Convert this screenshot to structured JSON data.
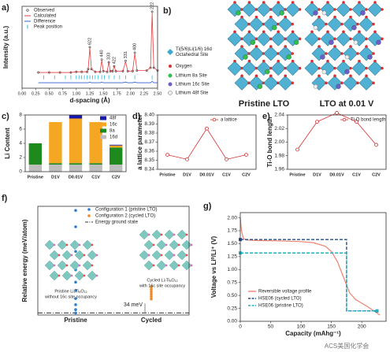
{
  "chart_data": [
    {
      "type": "xrd",
      "panel_label": "a)",
      "xlabel": "d-spacing (Å)",
      "ylabel": "Intensity (a.u.)",
      "xlim": [
        0,
        2.5
      ],
      "xticks": [
        {
          "value": 0,
          "label": "0.00"
        },
        {
          "value": 0.25,
          "label": "0.25"
        },
        {
          "value": 0.5,
          "label": "0.50"
        },
        {
          "value": 0.75,
          "label": "0.75"
        },
        {
          "value": 1,
          "label": "1.00"
        },
        {
          "value": 1.25,
          "label": "1.25"
        },
        {
          "value": 1.5,
          "label": "1.50"
        },
        {
          "value": 1.75,
          "label": "1.75"
        },
        {
          "value": 2,
          "label": "2.00"
        },
        {
          "value": 2.25,
          "label": "2.25"
        },
        {
          "value": 2.5,
          "label": "2.50"
        }
      ],
      "ylim": [
        -20,
        100
      ],
      "x": [
        0.3,
        0.5,
        0.7,
        0.9,
        1.0,
        1.1,
        1.2,
        1.22,
        1.25,
        1.28,
        1.35,
        1.44,
        1.47,
        1.5,
        1.57,
        1.6,
        1.63,
        1.67,
        1.7,
        1.73,
        1.86,
        1.91,
        1.95,
        2.04,
        2.08,
        2.12,
        2.3,
        2.37,
        2.4,
        2.43,
        2.5
      ],
      "series": [
        {
          "name": "Observed",
          "color": "#333333",
          "values": [
            3,
            3,
            3,
            3,
            4,
            4,
            4,
            8,
            40,
            8,
            4,
            4,
            22,
            5,
            4,
            18,
            5,
            5,
            12,
            5,
            5,
            20,
            5,
            5,
            32,
            6,
            6,
            10,
            92,
            10,
            6
          ]
        },
        {
          "name": "Calculated",
          "color": "#e04040",
          "values": [
            3,
            3,
            3,
            3,
            4,
            4,
            4,
            8,
            39,
            8,
            4,
            4,
            21,
            5,
            4,
            18,
            5,
            5,
            12,
            5,
            5,
            19,
            5,
            5,
            31,
            6,
            6,
            10,
            90,
            10,
            6
          ]
        },
        {
          "name": "Difference",
          "color": "#3060d0",
          "values": [
            -12,
            -12,
            -12,
            -12,
            -12,
            -12,
            -12,
            -12,
            -11,
            -12,
            -12,
            -12,
            -11,
            -12,
            -12,
            -12,
            -12,
            -12,
            -12,
            -12,
            -12,
            -11,
            -12,
            -12,
            -11,
            -12,
            -12,
            -12,
            -10,
            -12,
            -12
          ]
        }
      ],
      "peak_positions": {
        "name": "Peak position",
        "color": "#22b8d8",
        "x": [
          0.4,
          0.6,
          0.8,
          0.9,
          1.0,
          1.05,
          1.1,
          1.15,
          1.2,
          1.25,
          1.3,
          1.35,
          1.4,
          1.47,
          1.52,
          1.6,
          1.7,
          1.8,
          1.91,
          2.08,
          2.4
        ]
      },
      "peak_labels": [
        {
          "x": 1.25,
          "label": "622"
        },
        {
          "x": 1.47,
          "label": "440"
        },
        {
          "x": 1.6,
          "label": "333"
        },
        {
          "x": 1.7,
          "label": "422"
        },
        {
          "x": 1.91,
          "label": "331"
        },
        {
          "x": 2.08,
          "label": "400"
        },
        {
          "x": 2.4,
          "label": "222"
        }
      ]
    },
    {
      "type": "stacked_bar",
      "panel_label": "c)",
      "ylabel": "Li Content",
      "categories": [
        "Pristine",
        "D1V",
        "D0.01V",
        "C1V",
        "C2V"
      ],
      "ylim": [
        0,
        8
      ],
      "yticks": [
        0,
        2,
        4,
        6,
        8
      ],
      "series": [
        {
          "name": "16d",
          "color": "#bdbdbd",
          "values": [
            1,
            1,
            1,
            1,
            1
          ]
        },
        {
          "name": "8a",
          "color": "#1e8a1e",
          "values": [
            3,
            0.2,
            0.2,
            0.2,
            2.4
          ]
        },
        {
          "name": "16c",
          "color": "#f5a623",
          "values": [
            0,
            5.8,
            6.3,
            5.8,
            0.3
          ]
        },
        {
          "name": "48f",
          "color": "#1a1aa8",
          "values": [
            0,
            0,
            0.5,
            0,
            0.1
          ]
        }
      ]
    },
    {
      "type": "line",
      "panel_label": "d)",
      "ylabel": "a lattice parameter",
      "categories": [
        "Pristine",
        "D1V",
        "D0.01V",
        "C1V",
        "C2V"
      ],
      "ylim": [
        8.34,
        8.4
      ],
      "yticks": [
        8.34,
        8.35,
        8.36,
        8.37,
        8.38,
        8.39,
        {
          "value": 8.4,
          "label": "8.40"
        }
      ],
      "series": [
        {
          "name": "a lattice",
          "color": "#d03030",
          "values": [
            8.356,
            8.351,
            8.385,
            8.351,
            8.356
          ]
        }
      ]
    },
    {
      "type": "line",
      "panel_label": "e)",
      "ylabel": "Ti-O bond length",
      "categories": [
        "Pristine",
        "D1V",
        "D0.01V",
        "C1V",
        "C2V"
      ],
      "ylim": [
        1.96,
        2.04
      ],
      "yticks": [
        1.96,
        1.98,
        {
          "value": 2,
          "label": "2.00"
        },
        2.02,
        2.04
      ],
      "series": [
        {
          "name": "Ti-O bond length",
          "color": "#d03030",
          "values": [
            1.989,
            2.03,
            2.043,
            2.03,
            1.996
          ]
        }
      ]
    },
    {
      "type": "strip",
      "panel_label": "f)",
      "ylabel": "Relative energy (meV/atom)",
      "categories": [
        "Pristine",
        "Cycled"
      ],
      "ylim": [
        -5,
        260
      ],
      "series": [
        {
          "name": "Configuration 1 (pristine LTO)",
          "color": "#2f7fd0",
          "values": [
            [
              0,
              8,
              20,
              35,
              55,
              75,
              105,
              150,
              210,
              250
            ],
            []
          ]
        },
        {
          "name": "Configuration 2 (cycled LTO)",
          "color": "#f08a24",
          "values": [
            [],
            [
              34,
              40,
              46,
              52,
              58,
              64
            ]
          ]
        }
      ],
      "reference_line": {
        "name": "Energy ground state",
        "value": 0,
        "color": "#333333"
      },
      "annotation": "34 meV",
      "insets": [
        {
          "label": "Pristine Li₄Ti₅O₁₂",
          "sublabel": "without 16c site occupancy"
        },
        {
          "label": "Cycled Li₇Ti₅O₁₂",
          "sublabel": "with 16c site occupancy"
        }
      ]
    },
    {
      "type": "xy_line",
      "panel_label": "g)",
      "xlabel": "Capacity (mAhg⁻¹)",
      "ylabel": "Voltage vs Li⁰/Li⁺ (V)",
      "xlim": [
        0,
        240
      ],
      "xticks": [
        0,
        50,
        100,
        150,
        200
      ],
      "ylim": [
        0,
        2.1
      ],
      "yticks": [
        {
          "value": 0,
          "label": "0.00"
        },
        {
          "value": 0.25,
          "label": "0.25"
        },
        {
          "value": 0.5,
          "label": "0.50"
        },
        {
          "value": 0.75,
          "label": "0.75"
        },
        {
          "value": 1,
          "label": "1.00"
        },
        {
          "value": 1.25,
          "label": "1.25"
        },
        {
          "value": 1.5,
          "label": "1.50"
        },
        {
          "value": 1.75,
          "label": "1.75"
        },
        {
          "value": 2,
          "label": "2.00"
        }
      ],
      "series": [
        {
          "name": "Reversible voltage profile",
          "color": "#f08070",
          "style": "solid",
          "x": [
            0,
            2,
            5,
            10,
            30,
            60,
            100,
            120,
            140,
            150,
            160,
            170,
            180,
            190,
            200,
            210,
            220,
            230
          ],
          "values": [
            2.0,
            1.75,
            1.6,
            1.57,
            1.56,
            1.555,
            1.54,
            1.52,
            1.45,
            1.35,
            1.15,
            0.85,
            0.55,
            0.42,
            0.35,
            0.28,
            0.2,
            0.12
          ]
        },
        {
          "name": "HSE06 (cycled LTO)",
          "color": "#1f4e8c",
          "style": "dashed",
          "x": [
            0,
            175,
            175,
            225
          ],
          "values": [
            1.58,
            1.58,
            0.2,
            0.2
          ]
        },
        {
          "name": "HSE06 (pristine LTO)",
          "color": "#1fb5c0",
          "style": "dashed",
          "x": [
            0,
            175,
            175,
            225
          ],
          "values": [
            1.32,
            1.32,
            0.2,
            0.2
          ]
        }
      ]
    }
  ],
  "structure_panel": {
    "panel_label": "b)",
    "legend": [
      [
        "Ti(5/6)Li(1/6) 16d",
        "Octahedral Site"
      ],
      [
        "Oxygen"
      ],
      [
        "Lithium 8a Site"
      ],
      [
        "Lithium 16c Site"
      ],
      [
        "Lithium 48f Site"
      ]
    ],
    "captions": [
      "Pristine LTO",
      "LTO at 0.01 V"
    ]
  },
  "watermark": "ACS美国化学会"
}
